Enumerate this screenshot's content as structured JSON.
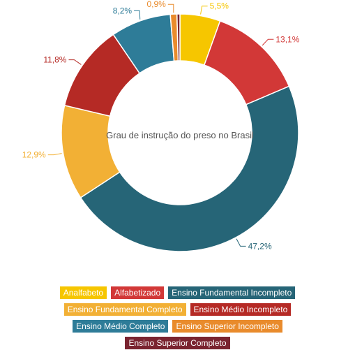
{
  "chart_data": {
    "type": "pie",
    "donut": true,
    "title": "Grau de instrução do preso no Brasil",
    "categories": [
      "Analfabeto",
      "Alfabetizado",
      "Ensino Fundamental Incompleto",
      "Ensino Fundamental Completo",
      "Ensino Médio Incompleto",
      "Ensino Médio Completo",
      "Ensino Superior Incompleto",
      "Ensino Superior Completo"
    ],
    "values": [
      5.5,
      13.1,
      47.2,
      12.9,
      11.8,
      8.2,
      0.9,
      0.4
    ],
    "value_labels": [
      "5,5%",
      "13,1%",
      "47,2%",
      "12,9%",
      "11,8%",
      "8,2%",
      "0,9%",
      ""
    ],
    "colors": [
      "#F6C600",
      "#D23837",
      "#266577",
      "#F2B035",
      "#B52A25",
      "#2E7C98",
      "#E98B2C",
      "#7A2430"
    ],
    "legend_position": "bottom",
    "legend_rows": [
      [
        0,
        1,
        2
      ],
      [
        3,
        4
      ],
      [
        5,
        6
      ],
      [
        7
      ]
    ]
  }
}
